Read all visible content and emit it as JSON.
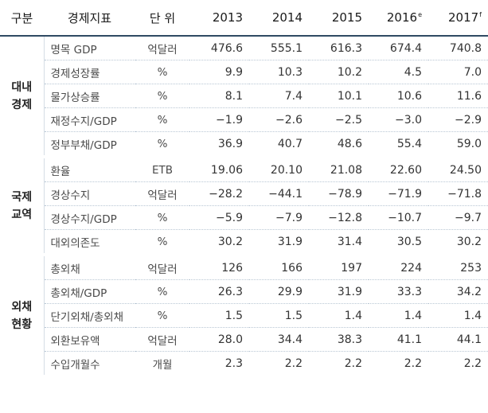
{
  "header": {
    "category": "구분",
    "indicator": "경제지표",
    "unit": "단 위",
    "years": [
      {
        "year": "2013",
        "mark": ""
      },
      {
        "year": "2014",
        "mark": ""
      },
      {
        "year": "2015",
        "mark": ""
      },
      {
        "year": "2016",
        "mark": "e"
      },
      {
        "year": "2017",
        "mark": "f"
      }
    ]
  },
  "groups": [
    {
      "label": [
        "대내",
        "경제"
      ],
      "rows": [
        {
          "indicator": "명목 GDP",
          "unit": "억달러",
          "values": [
            "476.6",
            "555.1",
            "616.3",
            "674.4",
            "740.8"
          ]
        },
        {
          "indicator": "경제성장률",
          "unit": "%",
          "values": [
            "9.9",
            "10.3",
            "10.2",
            "4.5",
            "7.0"
          ]
        },
        {
          "indicator": "물가상승률",
          "unit": "%",
          "values": [
            "8.1",
            "7.4",
            "10.1",
            "10.6",
            "11.6"
          ]
        },
        {
          "indicator": "재정수지/GDP",
          "unit": "%",
          "values": [
            "−1.9",
            "−2.6",
            "−2.5",
            "−3.0",
            "−2.9"
          ]
        },
        {
          "indicator": "정부부채/GDP",
          "unit": "%",
          "values": [
            "36.9",
            "40.7",
            "48.6",
            "55.4",
            "59.0"
          ]
        }
      ]
    },
    {
      "label": [
        "국제",
        "교역"
      ],
      "rows": [
        {
          "indicator": "환율",
          "unit": "ETB",
          "values": [
            "19.06",
            "20.10",
            "21.08",
            "22.60",
            "24.50"
          ]
        },
        {
          "indicator": "경상수지",
          "unit": "억달러",
          "values": [
            "−28.2",
            "−44.1",
            "−78.9",
            "−71.9",
            "−71.8"
          ]
        },
        {
          "indicator": "경상수지/GDP",
          "unit": "%",
          "values": [
            "−5.9",
            "−7.9",
            "−12.8",
            "−10.7",
            "−9.7"
          ]
        },
        {
          "indicator": "대외의존도",
          "unit": "%",
          "values": [
            "30.2",
            "31.9",
            "31.4",
            "30.5",
            "30.2"
          ]
        }
      ]
    },
    {
      "label": [
        "외채",
        "현황"
      ],
      "rows": [
        {
          "indicator": "총외채",
          "unit": "억달러",
          "values": [
            "126",
            "166",
            "197",
            "224",
            "253"
          ]
        },
        {
          "indicator": "총외채/GDP",
          "unit": "%",
          "values": [
            "26.3",
            "29.9",
            "31.9",
            "33.3",
            "34.2"
          ]
        },
        {
          "indicator": "단기외채/총외채",
          "unit": "%",
          "values": [
            "1.5",
            "1.5",
            "1.4",
            "1.4",
            "1.4"
          ]
        },
        {
          "indicator": "외환보유액",
          "unit": "억달러",
          "values": [
            "28.0",
            "34.4",
            "38.3",
            "41.1",
            "44.1"
          ]
        },
        {
          "indicator": "수입개월수",
          "unit": "개월",
          "values": [
            "2.3",
            "2.2",
            "2.2",
            "2.2",
            "2.2"
          ]
        }
      ]
    }
  ]
}
